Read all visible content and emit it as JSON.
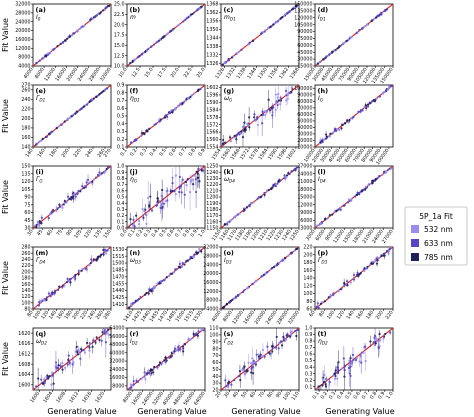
{
  "figure": {
    "y_axis_label": "Fit Value",
    "x_axis_label": "Generating Value",
    "legend": {
      "title": "5P_1a Fit",
      "placement": "right",
      "entries": [
        {
          "label": "532 nm",
          "color": "#9a8df2"
        },
        {
          "label": "633 nm",
          "color": "#5645c4"
        },
        {
          "label": "785 nm",
          "color": "#1f1f5a"
        }
      ]
    },
    "identity_line_color": "#e02020"
  },
  "chart_data": [
    {
      "type": "scatter",
      "panel": "(a)",
      "param": "I0",
      "ticks": [
        "4000",
        "8000",
        "12000",
        "16000",
        "20000",
        "24000",
        "28000",
        "32000"
      ],
      "range": [
        4000,
        32000
      ],
      "scatter_level": 0.01
    },
    {
      "type": "scatter",
      "panel": "(b)",
      "param": "m",
      "ticks": [
        "10.0",
        "12.5",
        "15.0",
        "17.5",
        "20.0",
        "22.5",
        "25.0"
      ],
      "range": [
        10.0,
        25.0
      ],
      "scatter_level": 0.005
    },
    {
      "type": "scatter",
      "panel": "(c)",
      "param": "mD1",
      "ticks": [
        "1326",
        "1332",
        "1338",
        "1344",
        "1350",
        "1356",
        "1362",
        "1368"
      ],
      "range": [
        1324,
        1368
      ],
      "scatter_level": 0.01
    },
    {
      "type": "scatter",
      "panel": "(d)",
      "param": "ID1",
      "ticks": [
        "15000",
        "30000",
        "45000",
        "60000",
        "75000",
        "90000",
        "105000",
        "120000",
        "135000",
        "150000"
      ],
      "range": [
        15000,
        150000
      ],
      "scatter_level": 0.01
    },
    {
      "type": "scatter",
      "panel": "(e)",
      "param": "ΓD1",
      "ticks": [
        "140",
        "160",
        "180",
        "200",
        "220",
        "240",
        "260",
        "270"
      ],
      "range": [
        140,
        270
      ],
      "scatter_level": 0.01
    },
    {
      "type": "scatter",
      "panel": "(f)",
      "param": "ηD1",
      "ticks": [
        "0.1",
        "0.2",
        "0.3",
        "0.4",
        "0.5",
        "0.6",
        "0.7",
        "0.8",
        "0.9"
      ],
      "range": [
        0.1,
        0.9
      ],
      "scatter_level": 0.02
    },
    {
      "type": "scatter",
      "panel": "(g)",
      "param": "ωG",
      "ticks": [
        "1554",
        "1560",
        "1566",
        "1572",
        "1578",
        "1584",
        "1590",
        "1596",
        "1602"
      ],
      "range": [
        1554,
        1604
      ],
      "scatter_level": 0.12
    },
    {
      "type": "scatter",
      "panel": "(h)",
      "param": "IG",
      "ticks": [
        "10000",
        "20000",
        "30000",
        "40000",
        "50000",
        "60000",
        "70000",
        "80000",
        "90000",
        "100000"
      ],
      "range": [
        10000,
        105000
      ],
      "scatter_level": 0.03
    },
    {
      "type": "scatter",
      "panel": "(i)",
      "param": "ΓG",
      "ticks": [
        "30",
        "45",
        "60",
        "75",
        "90",
        "105",
        "120",
        "135",
        "150"
      ],
      "range": [
        30,
        150
      ],
      "scatter_level": 0.05
    },
    {
      "type": "scatter",
      "panel": "(j)",
      "param": "ηG",
      "ticks": [
        "0.0",
        "0.1",
        "0.2",
        "0.3",
        "0.4",
        "0.5",
        "0.6",
        "0.7",
        "0.8",
        "0.9",
        "1.0"
      ],
      "range": [
        0.0,
        1.0
      ],
      "scatter_level": 0.22
    },
    {
      "type": "scatter",
      "panel": "(k)",
      "param": "ωD4",
      "ticks": [
        "1150",
        "1160",
        "1170",
        "1180",
        "1190",
        "1200",
        "1210",
        "1220",
        "1230",
        "1240",
        "1250"
      ],
      "range": [
        1150,
        1250
      ],
      "scatter_level": 0.02
    },
    {
      "type": "scatter",
      "panel": "(l)",
      "param": "ID4",
      "ticks": [
        "3000",
        "6000",
        "9000",
        "12000",
        "15000",
        "18000",
        "21000",
        "24000",
        "27000"
      ],
      "range": [
        3000,
        27000
      ],
      "scatter_level": 0.02
    },
    {
      "type": "scatter",
      "panel": "(m)",
      "param": "ΓD4",
      "ticks": [
        "80",
        "100",
        "120",
        "140",
        "160",
        "180",
        "200",
        "220",
        "240",
        "260",
        "280"
      ],
      "range": [
        80,
        280
      ],
      "scatter_level": 0.04
    },
    {
      "type": "scatter",
      "panel": "(n)",
      "param": "ωD3",
      "ticks": [
        "1410",
        "1425",
        "1440",
        "1455",
        "1470",
        "1485",
        "1500",
        "1515",
        "1530"
      ],
      "range": [
        1400,
        1535
      ],
      "scatter_level": 0.03
    },
    {
      "type": "scatter",
      "panel": "(o)",
      "param": "ID3",
      "ticks": [
        "4000",
        "8000",
        "12000",
        "16000",
        "20000",
        "24000",
        "28000",
        "32000"
      ],
      "range": [
        4000,
        32000
      ],
      "scatter_level": 0.01
    },
    {
      "type": "scatter",
      "panel": "(p)",
      "param": "ΓD3",
      "ticks": [
        "60",
        "80",
        "100",
        "120",
        "140",
        "160",
        "180",
        "200",
        "220"
      ],
      "range": [
        60,
        220
      ],
      "scatter_level": 0.04
    },
    {
      "type": "scatter",
      "panel": "(q)",
      "param": "ωD2",
      "ticks": [
        "1600",
        "1604",
        "1608",
        "1612",
        "1616",
        "1620"
      ],
      "range": [
        1598,
        1622
      ],
      "scatter_level": 0.12
    },
    {
      "type": "scatter",
      "panel": "(r)",
      "param": "ID2",
      "ticks": [
        "8000",
        "16000",
        "24000",
        "32000",
        "40000",
        "48000",
        "56000",
        "64000"
      ],
      "range": [
        4000,
        64000
      ],
      "scatter_level": 0.05
    },
    {
      "type": "scatter",
      "panel": "(s)",
      "param": "ΓD2",
      "ticks": [
        "20",
        "30",
        "40",
        "50",
        "60",
        "70",
        "80",
        "90",
        "100",
        "110"
      ],
      "range": [
        20,
        110
      ],
      "scatter_level": 0.1
    },
    {
      "type": "scatter",
      "panel": "(t)",
      "param": "ηD2",
      "ticks": [
        "0.1",
        "0.2",
        "0.3",
        "0.4",
        "0.5",
        "0.6",
        "0.7",
        "0.8",
        "0.9",
        "1.0"
      ],
      "range": [
        0.05,
        1.0
      ],
      "scatter_level": 0.15
    }
  ]
}
